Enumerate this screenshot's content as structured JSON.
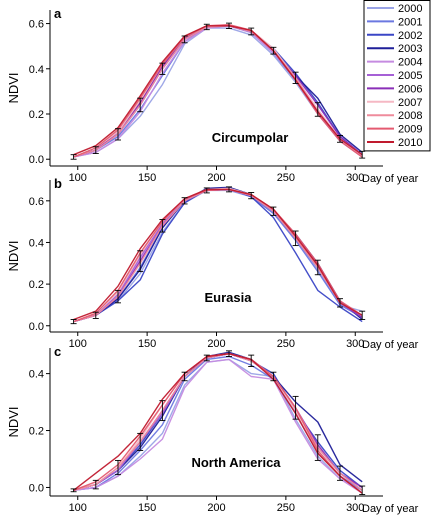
{
  "legend": [
    "2000",
    "2001",
    "2002",
    "2003",
    "2004",
    "2005",
    "2006",
    "2007",
    "2008",
    "2009",
    "2010"
  ],
  "colors": [
    "#9aa3e6",
    "#6b78e0",
    "#3a46c6",
    "#1f1f99",
    "#c58be0",
    "#a660d6",
    "#8a2fb8",
    "#f5b8c4",
    "#ef8b9c",
    "#e45a70",
    "#c01a2e"
  ],
  "chart_data": [
    {
      "panel": "a",
      "type": "line",
      "region": "Circumpolar",
      "ylabel": "NDVI",
      "xlabel": "Day of year",
      "x": [
        97,
        113,
        129,
        145,
        161,
        177,
        193,
        209,
        225,
        241,
        257,
        273,
        289,
        305
      ],
      "xticks": [
        100,
        150,
        200,
        250,
        300
      ],
      "yticks": [
        "0.0",
        "0.2",
        "0.4",
        "0.6"
      ],
      "xlim": [
        80,
        320
      ],
      "ylim": [
        -0.03,
        0.66
      ],
      "mean": [
        0.01,
        0.04,
        0.11,
        0.24,
        0.4,
        0.53,
        0.585,
        0.59,
        0.565,
        0.48,
        0.36,
        0.22,
        0.09,
        0.02
      ],
      "err": [
        0.01,
        0.015,
        0.025,
        0.03,
        0.025,
        0.015,
        0.012,
        0.012,
        0.015,
        0.015,
        0.025,
        0.03,
        0.015,
        0.015
      ],
      "series": [
        {
          "name": "2000",
          "values": [
            0.01,
            0.03,
            0.09,
            0.19,
            0.33,
            0.51,
            0.58,
            0.58,
            0.55,
            0.46,
            0.34,
            0.2,
            0.08,
            0.01
          ]
        },
        {
          "name": "2001",
          "values": [
            0.01,
            0.04,
            0.1,
            0.22,
            0.37,
            0.52,
            0.585,
            0.59,
            0.56,
            0.47,
            0.35,
            0.21,
            0.08,
            0.02
          ]
        },
        {
          "name": "2002",
          "values": [
            0.01,
            0.04,
            0.11,
            0.24,
            0.4,
            0.53,
            0.585,
            0.59,
            0.565,
            0.49,
            0.38,
            0.25,
            0.1,
            0.02
          ]
        },
        {
          "name": "2003",
          "values": [
            0.01,
            0.04,
            0.12,
            0.25,
            0.41,
            0.535,
            0.59,
            0.59,
            0.565,
            0.48,
            0.37,
            0.27,
            0.11,
            0.03
          ]
        },
        {
          "name": "2004",
          "values": [
            0.01,
            0.03,
            0.09,
            0.21,
            0.38,
            0.52,
            0.58,
            0.59,
            0.56,
            0.47,
            0.36,
            0.22,
            0.09,
            0.01
          ]
        },
        {
          "name": "2005",
          "values": [
            0.01,
            0.04,
            0.11,
            0.24,
            0.4,
            0.53,
            0.585,
            0.59,
            0.565,
            0.48,
            0.35,
            0.21,
            0.09,
            0.02
          ]
        },
        {
          "name": "2006",
          "values": [
            0.01,
            0.04,
            0.12,
            0.25,
            0.41,
            0.535,
            0.59,
            0.59,
            0.565,
            0.48,
            0.37,
            0.24,
            0.1,
            0.02
          ]
        },
        {
          "name": "2007",
          "values": [
            0.01,
            0.05,
            0.12,
            0.26,
            0.42,
            0.54,
            0.59,
            0.595,
            0.57,
            0.49,
            0.36,
            0.22,
            0.09,
            0.01
          ]
        },
        {
          "name": "2008",
          "values": [
            0.01,
            0.04,
            0.11,
            0.24,
            0.4,
            0.53,
            0.585,
            0.59,
            0.565,
            0.48,
            0.36,
            0.21,
            0.09,
            0.02
          ]
        },
        {
          "name": "2009",
          "values": [
            0.01,
            0.05,
            0.13,
            0.27,
            0.42,
            0.54,
            0.59,
            0.595,
            0.57,
            0.48,
            0.35,
            0.2,
            0.08,
            0.01
          ]
        },
        {
          "name": "2010",
          "values": [
            0.02,
            0.06,
            0.14,
            0.28,
            0.43,
            0.545,
            0.59,
            0.59,
            0.57,
            0.48,
            0.35,
            0.21,
            0.09,
            0.02
          ]
        }
      ]
    },
    {
      "panel": "b",
      "type": "line",
      "region": "Eurasia",
      "ylabel": "NDVI",
      "xlabel": "Day of year",
      "x": [
        97,
        113,
        129,
        145,
        161,
        177,
        193,
        209,
        225,
        241,
        257,
        273,
        289,
        305
      ],
      "xticks": [
        100,
        150,
        200,
        250,
        300
      ],
      "yticks": [
        "0.0",
        "0.2",
        "0.4",
        "0.6"
      ],
      "xlim": [
        80,
        320
      ],
      "ylim": [
        -0.03,
        0.7
      ],
      "mean": [
        0.02,
        0.05,
        0.14,
        0.31,
        0.48,
        0.6,
        0.65,
        0.655,
        0.625,
        0.55,
        0.42,
        0.28,
        0.11,
        0.05
      ],
      "err": [
        0.01,
        0.015,
        0.03,
        0.05,
        0.03,
        0.015,
        0.012,
        0.012,
        0.015,
        0.02,
        0.035,
        0.035,
        0.02,
        0.02
      ],
      "series": [
        {
          "name": "2000",
          "values": [
            0.02,
            0.05,
            0.12,
            0.25,
            0.45,
            0.59,
            0.65,
            0.65,
            0.62,
            0.54,
            0.42,
            0.27,
            0.1,
            0.07
          ]
        },
        {
          "name": "2001",
          "values": [
            0.02,
            0.05,
            0.13,
            0.28,
            0.47,
            0.6,
            0.65,
            0.655,
            0.62,
            0.54,
            0.41,
            0.26,
            0.1,
            0.04
          ]
        },
        {
          "name": "2002",
          "values": [
            0.02,
            0.05,
            0.12,
            0.22,
            0.44,
            0.59,
            0.655,
            0.66,
            0.62,
            0.52,
            0.35,
            0.17,
            0.09,
            0.02
          ]
        },
        {
          "name": "2003",
          "values": [
            0.02,
            0.05,
            0.13,
            0.27,
            0.47,
            0.6,
            0.66,
            0.665,
            0.63,
            0.55,
            0.44,
            0.3,
            0.12,
            0.03
          ]
        },
        {
          "name": "2004",
          "values": [
            0.02,
            0.05,
            0.14,
            0.32,
            0.48,
            0.6,
            0.65,
            0.655,
            0.625,
            0.55,
            0.43,
            0.28,
            0.11,
            0.04
          ]
        },
        {
          "name": "2005",
          "values": [
            0.02,
            0.05,
            0.15,
            0.33,
            0.49,
            0.6,
            0.65,
            0.655,
            0.625,
            0.55,
            0.43,
            0.29,
            0.11,
            0.04
          ]
        },
        {
          "name": "2006",
          "values": [
            0.02,
            0.05,
            0.14,
            0.31,
            0.48,
            0.6,
            0.65,
            0.655,
            0.625,
            0.55,
            0.42,
            0.28,
            0.11,
            0.04
          ]
        },
        {
          "name": "2007",
          "values": [
            0.02,
            0.06,
            0.16,
            0.34,
            0.5,
            0.61,
            0.655,
            0.66,
            0.63,
            0.56,
            0.43,
            0.28,
            0.11,
            0.05
          ]
        },
        {
          "name": "2008",
          "values": [
            0.02,
            0.05,
            0.14,
            0.3,
            0.48,
            0.6,
            0.65,
            0.655,
            0.625,
            0.55,
            0.42,
            0.28,
            0.11,
            0.05
          ]
        },
        {
          "name": "2009",
          "values": [
            0.02,
            0.06,
            0.17,
            0.35,
            0.5,
            0.61,
            0.65,
            0.655,
            0.63,
            0.56,
            0.44,
            0.3,
            0.12,
            0.05
          ]
        },
        {
          "name": "2010",
          "values": [
            0.03,
            0.07,
            0.19,
            0.37,
            0.51,
            0.61,
            0.655,
            0.655,
            0.63,
            0.56,
            0.43,
            0.29,
            0.11,
            0.05
          ]
        }
      ]
    },
    {
      "panel": "c",
      "type": "line",
      "region": "North America",
      "ylabel": "NDVI",
      "xlabel": "Day of year",
      "x": [
        97,
        113,
        129,
        145,
        161,
        177,
        193,
        209,
        225,
        241,
        257,
        273,
        289,
        305
      ],
      "xticks": [
        100,
        150,
        200,
        250,
        300
      ],
      "yticks": [
        "0.0",
        "0.2",
        "0.4"
      ],
      "xlim": [
        80,
        320
      ],
      "ylim": [
        -0.03,
        0.49
      ],
      "mean": [
        -0.01,
        0.01,
        0.07,
        0.16,
        0.27,
        0.39,
        0.455,
        0.47,
        0.445,
        0.39,
        0.28,
        0.14,
        0.05,
        -0.01
      ],
      "err": [
        0.005,
        0.015,
        0.025,
        0.03,
        0.035,
        0.015,
        0.01,
        0.01,
        0.02,
        0.015,
        0.04,
        0.045,
        0.025,
        0.015
      ],
      "series": [
        {
          "name": "2000",
          "values": [
            -0.01,
            0.0,
            0.04,
            0.11,
            0.19,
            0.36,
            0.44,
            0.45,
            0.4,
            0.39,
            0.24,
            0.11,
            0.03,
            -0.01
          ]
        },
        {
          "name": "2001",
          "values": [
            -0.01,
            0.0,
            0.05,
            0.13,
            0.22,
            0.38,
            0.45,
            0.46,
            0.43,
            0.38,
            0.26,
            0.12,
            0.04,
            -0.01
          ]
        },
        {
          "name": "2002",
          "values": [
            -0.01,
            0.01,
            0.06,
            0.15,
            0.26,
            0.39,
            0.455,
            0.47,
            0.445,
            0.4,
            0.27,
            0.16,
            0.06,
            0.0
          ]
        },
        {
          "name": "2003",
          "values": [
            -0.01,
            0.01,
            0.06,
            0.14,
            0.25,
            0.39,
            0.46,
            0.475,
            0.45,
            0.39,
            0.3,
            0.23,
            0.08,
            0.02
          ]
        },
        {
          "name": "2004",
          "values": [
            -0.01,
            0.0,
            0.04,
            0.1,
            0.17,
            0.35,
            0.44,
            0.45,
            0.39,
            0.38,
            0.23,
            0.1,
            0.03,
            -0.02
          ]
        },
        {
          "name": "2005",
          "values": [
            -0.01,
            0.01,
            0.06,
            0.16,
            0.26,
            0.39,
            0.455,
            0.47,
            0.445,
            0.39,
            0.28,
            0.14,
            0.05,
            -0.01
          ]
        },
        {
          "name": "2006",
          "values": [
            -0.01,
            0.01,
            0.07,
            0.16,
            0.27,
            0.39,
            0.455,
            0.47,
            0.445,
            0.39,
            0.28,
            0.15,
            0.05,
            0.0
          ]
        },
        {
          "name": "2007",
          "values": [
            -0.01,
            0.01,
            0.07,
            0.17,
            0.29,
            0.4,
            0.46,
            0.47,
            0.45,
            0.39,
            0.27,
            0.12,
            0.04,
            -0.02
          ]
        },
        {
          "name": "2008",
          "values": [
            -0.01,
            0.01,
            0.07,
            0.16,
            0.27,
            0.39,
            0.455,
            0.47,
            0.445,
            0.39,
            0.28,
            0.14,
            0.05,
            -0.01
          ]
        },
        {
          "name": "2009",
          "values": [
            -0.01,
            0.02,
            0.08,
            0.18,
            0.29,
            0.4,
            0.46,
            0.47,
            0.45,
            0.39,
            0.28,
            0.13,
            0.04,
            -0.02
          ]
        },
        {
          "name": "2010",
          "values": [
            -0.01,
            0.05,
            0.11,
            0.19,
            0.31,
            0.4,
            0.46,
            0.47,
            0.45,
            0.38,
            0.26,
            0.12,
            0.04,
            -0.02
          ]
        }
      ]
    }
  ]
}
